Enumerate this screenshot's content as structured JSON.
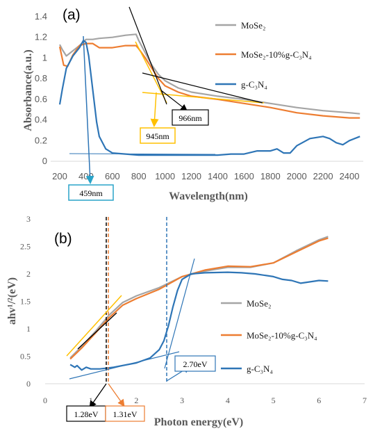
{
  "chart_data": [
    {
      "type": "line",
      "panel_label": "(a)",
      "xlabel": "Wavelength(nm)",
      "ylabel": "Absorbance(a.u.)",
      "xlim": [
        200,
        2500
      ],
      "ylim": [
        0,
        1.4
      ],
      "xticks": [
        200,
        400,
        600,
        800,
        1000,
        1200,
        1400,
        1600,
        1800,
        2000,
        2200,
        2400
      ],
      "yticks": [
        0,
        0.2,
        0.4,
        0.6,
        0.8,
        1,
        1.2,
        1.4
      ],
      "ytick_labels": [
        "0",
        "0.2",
        "0.4",
        "0.6",
        "0.8",
        "1",
        "1.2",
        "1.4"
      ],
      "grid": false,
      "legend_position": "right",
      "series": [
        {
          "name": "MoSe₂",
          "color": "#a5a5a5",
          "points": [
            [
              200,
              1.13
            ],
            [
              220,
              1.08
            ],
            [
              250,
              1.02
            ],
            [
              300,
              1.07
            ],
            [
              350,
              1.12
            ],
            [
              400,
              1.18
            ],
            [
              450,
              1.18
            ],
            [
              500,
              1.19
            ],
            [
              600,
              1.2
            ],
            [
              700,
              1.22
            ],
            [
              780,
              1.23
            ],
            [
              800,
              1.17
            ],
            [
              850,
              1.05
            ],
            [
              900,
              0.93
            ],
            [
              950,
              0.84
            ],
            [
              1000,
              0.78
            ],
            [
              1100,
              0.71
            ],
            [
              1200,
              0.67
            ],
            [
              1400,
              0.63
            ],
            [
              1600,
              0.6
            ],
            [
              1800,
              0.56
            ],
            [
              2000,
              0.52
            ],
            [
              2200,
              0.49
            ],
            [
              2400,
              0.47
            ],
            [
              2480,
              0.46
            ]
          ]
        },
        {
          "name": "MoSe₂-10%g-C₃N₄",
          "color": "#ed7d31",
          "points": [
            [
              200,
              1.11
            ],
            [
              230,
              0.93
            ],
            [
              260,
              0.92
            ],
            [
              300,
              1.03
            ],
            [
              350,
              1.12
            ],
            [
              400,
              1.14
            ],
            [
              450,
              1.14
            ],
            [
              500,
              1.1
            ],
            [
              600,
              1.1
            ],
            [
              700,
              1.12
            ],
            [
              780,
              1.12
            ],
            [
              800,
              1.09
            ],
            [
              850,
              1.0
            ],
            [
              900,
              0.9
            ],
            [
              950,
              0.8
            ],
            [
              1000,
              0.73
            ],
            [
              1100,
              0.67
            ],
            [
              1200,
              0.63
            ],
            [
              1400,
              0.6
            ],
            [
              1600,
              0.56
            ],
            [
              1800,
              0.52
            ],
            [
              2000,
              0.47
            ],
            [
              2200,
              0.44
            ],
            [
              2400,
              0.42
            ],
            [
              2480,
              0.42
            ]
          ]
        },
        {
          "name": "g-C₃N₄",
          "color": "#2e75b6",
          "points": [
            [
              200,
              0.55
            ],
            [
              220,
              0.7
            ],
            [
              250,
              0.9
            ],
            [
              300,
              1.02
            ],
            [
              350,
              1.1
            ],
            [
              380,
              1.17
            ],
            [
              400,
              1.15
            ],
            [
              420,
              1.02
            ],
            [
              450,
              0.7
            ],
            [
              480,
              0.38
            ],
            [
              500,
              0.24
            ],
            [
              550,
              0.12
            ],
            [
              600,
              0.08
            ],
            [
              800,
              0.06
            ],
            [
              1000,
              0.06
            ],
            [
              1200,
              0.06
            ],
            [
              1400,
              0.06
            ],
            [
              1500,
              0.07
            ],
            [
              1600,
              0.07
            ],
            [
              1700,
              0.1
            ],
            [
              1800,
              0.1
            ],
            [
              1850,
              0.12
            ],
            [
              1900,
              0.08
            ],
            [
              1950,
              0.08
            ],
            [
              2000,
              0.15
            ],
            [
              2100,
              0.22
            ],
            [
              2200,
              0.24
            ],
            [
              2250,
              0.22
            ],
            [
              2300,
              0.18
            ],
            [
              2350,
              0.16
            ],
            [
              2400,
              0.2
            ],
            [
              2480,
              0.24
            ]
          ]
        }
      ],
      "annotations": [
        {
          "text": "459nm",
          "color": "#29a3c8"
        },
        {
          "text": "945nm",
          "color": "#ffc000"
        },
        {
          "text": "966nm",
          "color": "#000000"
        }
      ]
    },
    {
      "type": "line",
      "panel_label": "(b)",
      "xlabel": "Photon energy(eV)",
      "ylabel": "ahv¹/²(eV)",
      "xlim": [
        0,
        7
      ],
      "ylim": [
        0,
        3
      ],
      "xticks": [
        0,
        1,
        2,
        3,
        4,
        5,
        6,
        7
      ],
      "yticks": [
        0,
        0.5,
        1,
        1.5,
        2,
        2.5,
        3
      ],
      "ytick_labels": [
        "0",
        "0.5",
        "1",
        "1.5",
        "2",
        "2.5",
        "3"
      ],
      "grid": false,
      "legend_position": "right",
      "series": [
        {
          "name": "MoSe₂",
          "color": "#a5a5a5",
          "points": [
            [
              0.55,
              0.47
            ],
            [
              0.8,
              0.68
            ],
            [
              1.1,
              0.95
            ],
            [
              1.4,
              1.25
            ],
            [
              1.7,
              1.48
            ],
            [
              2.0,
              1.6
            ],
            [
              2.5,
              1.75
            ],
            [
              3.0,
              1.95
            ],
            [
              3.5,
              2.05
            ],
            [
              4.0,
              2.12
            ],
            [
              4.5,
              2.12
            ],
            [
              5.0,
              2.2
            ],
            [
              5.5,
              2.42
            ],
            [
              6.0,
              2.62
            ],
            [
              6.2,
              2.68
            ]
          ]
        },
        {
          "name": "MoSe₂-10%g-C₃N₄",
          "color": "#ed7d31",
          "points": [
            [
              0.55,
              0.45
            ],
            [
              0.8,
              0.65
            ],
            [
              1.1,
              0.92
            ],
            [
              1.4,
              1.2
            ],
            [
              1.7,
              1.43
            ],
            [
              2.0,
              1.55
            ],
            [
              2.5,
              1.72
            ],
            [
              3.0,
              1.95
            ],
            [
              3.5,
              2.07
            ],
            [
              4.0,
              2.14
            ],
            [
              4.5,
              2.13
            ],
            [
              5.0,
              2.2
            ],
            [
              5.5,
              2.4
            ],
            [
              6.0,
              2.6
            ],
            [
              6.2,
              2.65
            ]
          ]
        },
        {
          "name": "g-C₃N₄",
          "color": "#2e75b6",
          "points": [
            [
              0.55,
              0.35
            ],
            [
              0.65,
              0.3
            ],
            [
              0.7,
              0.33
            ],
            [
              0.8,
              0.25
            ],
            [
              0.9,
              0.3
            ],
            [
              1.0,
              0.27
            ],
            [
              1.2,
              0.27
            ],
            [
              1.5,
              0.3
            ],
            [
              2.0,
              0.38
            ],
            [
              2.3,
              0.47
            ],
            [
              2.5,
              0.62
            ],
            [
              2.6,
              0.78
            ],
            [
              2.7,
              1.05
            ],
            [
              2.8,
              1.4
            ],
            [
              2.9,
              1.7
            ],
            [
              3.0,
              1.9
            ],
            [
              3.2,
              2.0
            ],
            [
              3.5,
              2.02
            ],
            [
              4.0,
              2.03
            ],
            [
              4.3,
              2.02
            ],
            [
              4.6,
              2.0
            ],
            [
              5.0,
              1.95
            ],
            [
              5.2,
              1.9
            ],
            [
              5.4,
              1.88
            ],
            [
              5.6,
              1.83
            ],
            [
              6.0,
              1.88
            ],
            [
              6.2,
              1.87
            ]
          ]
        }
      ],
      "annotations": [
        {
          "text": "1.28eV",
          "color": "#000000"
        },
        {
          "text": "1.31eV",
          "color": "#ed7d31"
        },
        {
          "text": "2.70eV",
          "color": "#2e75b6"
        }
      ]
    }
  ]
}
